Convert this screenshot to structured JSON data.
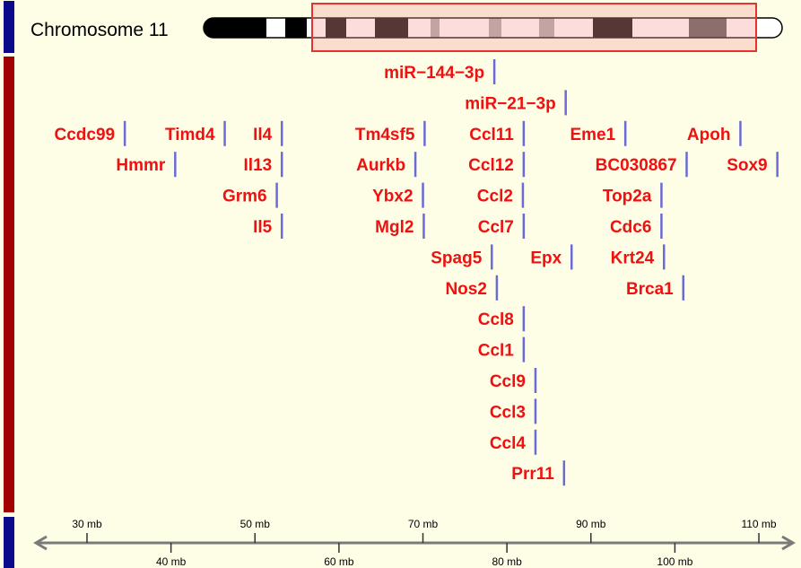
{
  "chromosome": {
    "title": "Chromosome 11"
  },
  "colors": {
    "background": "#fefde6",
    "label": "#ee1111",
    "marker": "#6b6bd6",
    "track_blue": "#0a0a8a",
    "track_red": "#a30000",
    "highlight_fill": "#f9d7d5",
    "highlight_stroke": "#e8322f",
    "axis": "#7a7a7a"
  },
  "axis": {
    "unit": "mb",
    "top_ticks": [
      {
        "value": 30,
        "label": "30 mb"
      },
      {
        "value": 50,
        "label": "50 mb"
      },
      {
        "value": 70,
        "label": "70 mb"
      },
      {
        "value": 90,
        "label": "90 mb"
      },
      {
        "value": 110,
        "label": "110 mb"
      }
    ],
    "bottom_ticks": [
      {
        "value": 40,
        "label": "40 mb"
      },
      {
        "value": 60,
        "label": "60 mb"
      },
      {
        "value": 80,
        "label": "80 mb"
      },
      {
        "value": 100,
        "label": "100 mb"
      }
    ]
  },
  "genes": [
    {
      "name": "miR−144−3p",
      "pos_mb": 78.5,
      "row": 1
    },
    {
      "name": "miR−21−3p",
      "pos_mb": 87.0,
      "row": 2
    },
    {
      "name": "Ccdc99",
      "pos_mb": 34.5,
      "row": 3
    },
    {
      "name": "Timd4",
      "pos_mb": 46.4,
      "row": 3
    },
    {
      "name": "Il4",
      "pos_mb": 53.2,
      "row": 3
    },
    {
      "name": "Tm4sf5",
      "pos_mb": 70.2,
      "row": 3
    },
    {
      "name": "Ccl11",
      "pos_mb": 82.0,
      "row": 3
    },
    {
      "name": "Eme1",
      "pos_mb": 94.1,
      "row": 3
    },
    {
      "name": "Apoh",
      "pos_mb": 107.8,
      "row": 3
    },
    {
      "name": "Hmmr",
      "pos_mb": 40.5,
      "row": 4
    },
    {
      "name": "Il13",
      "pos_mb": 53.2,
      "row": 4
    },
    {
      "name": "Aurkb",
      "pos_mb": 69.1,
      "row": 4
    },
    {
      "name": "Ccl12",
      "pos_mb": 82.0,
      "row": 4
    },
    {
      "name": "BC030867",
      "pos_mb": 101.4,
      "row": 4
    },
    {
      "name": "Sox9",
      "pos_mb": 112.2,
      "row": 4
    },
    {
      "name": "Grm6",
      "pos_mb": 52.6,
      "row": 5
    },
    {
      "name": "Ybx2",
      "pos_mb": 70.0,
      "row": 5
    },
    {
      "name": "Ccl2",
      "pos_mb": 81.9,
      "row": 5
    },
    {
      "name": "Top2a",
      "pos_mb": 98.4,
      "row": 5
    },
    {
      "name": "Il5",
      "pos_mb": 53.2,
      "row": 6
    },
    {
      "name": "Mgl2",
      "pos_mb": 70.1,
      "row": 6
    },
    {
      "name": "Ccl7",
      "pos_mb": 82.0,
      "row": 6
    },
    {
      "name": "Cdc6",
      "pos_mb": 98.4,
      "row": 6
    },
    {
      "name": "Spag5",
      "pos_mb": 78.2,
      "row": 7
    },
    {
      "name": "Epx",
      "pos_mb": 87.7,
      "row": 7
    },
    {
      "name": "Krt24",
      "pos_mb": 98.7,
      "row": 7
    },
    {
      "name": "Nos2",
      "pos_mb": 78.8,
      "row": 8
    },
    {
      "name": "Brca1",
      "pos_mb": 101.0,
      "row": 8
    },
    {
      "name": "Ccl8",
      "pos_mb": 82.0,
      "row": 9
    },
    {
      "name": "Ccl1",
      "pos_mb": 82.0,
      "row": 10
    },
    {
      "name": "Ccl9",
      "pos_mb": 83.4,
      "row": 11
    },
    {
      "name": "Ccl3",
      "pos_mb": 83.4,
      "row": 12
    },
    {
      "name": "Ccl4",
      "pos_mb": 83.4,
      "row": 13
    },
    {
      "name": "Prr11",
      "pos_mb": 86.8,
      "row": 14
    }
  ]
}
